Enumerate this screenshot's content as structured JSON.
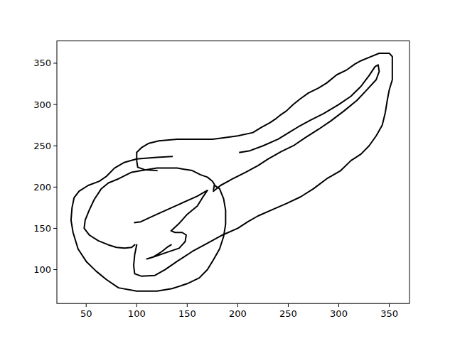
{
  "chart_data": {
    "type": "line",
    "xlim": [
      21,
      370
    ],
    "ylim": [
      59,
      377
    ],
    "xticks": [
      50,
      100,
      150,
      200,
      250,
      300,
      350
    ],
    "yticks": [
      100,
      150,
      200,
      250,
      300,
      350
    ],
    "grid": false,
    "series": [
      {
        "color": "#000000",
        "x": [
          135,
          120,
          100,
          88,
          78,
          70,
          63,
          52,
          43,
          38,
          36,
          35,
          37,
          42,
          50,
          60,
          70,
          82,
          100,
          120,
          135,
          150,
          162,
          170,
          176,
          182,
          186,
          188,
          188,
          186,
          182,
          177
        ],
        "values": [
          237,
          236,
          234,
          230,
          223,
          213,
          207,
          202,
          195,
          187,
          175,
          160,
          145,
          125,
          110,
          98,
          88,
          78,
          74,
          74,
          77,
          83,
          90,
          100,
          112,
          125,
          140,
          155,
          172,
          186,
          198,
          202
        ]
      },
      {
        "color": "#000000",
        "x": [
          98,
          95,
          88,
          80,
          72,
          62,
          53,
          48,
          49,
          53,
          58,
          65,
          72,
          82,
          95,
          105,
          120,
          140,
          155,
          163,
          170,
          175,
          177,
          176
        ],
        "values": [
          130,
          127,
          126,
          127,
          130,
          135,
          142,
          150,
          160,
          172,
          185,
          198,
          205,
          210,
          218,
          220,
          223,
          223,
          220,
          215,
          212,
          207,
          203,
          197
        ]
      },
      {
        "color": "#000000",
        "x": [
          120,
          108,
          101,
          100,
          100,
          105,
          112,
          122,
          140,
          160,
          175,
          182,
          200,
          215,
          223,
          232,
          238,
          242,
          248,
          255,
          262,
          270,
          280,
          288,
          298,
          308,
          316,
          322,
          332,
          340,
          350,
          353,
          353,
          353,
          350,
          348,
          346,
          343,
          337,
          330,
          322,
          312,
          302,
          288,
          275,
          262,
          248,
          235,
          220,
          210,
          200,
          185,
          170,
          155,
          140,
          128,
          118,
          105,
          98,
          97,
          98,
          100
        ],
        "values": [
          220,
          221,
          224,
          232,
          242,
          248,
          253,
          256,
          258,
          258,
          258,
          259,
          262,
          266,
          272,
          278,
          283,
          287,
          292,
          300,
          307,
          314,
          320,
          326,
          336,
          342,
          349,
          353,
          358,
          362,
          362,
          358,
          345,
          330,
          318,
          305,
          290,
          275,
          262,
          250,
          240,
          232,
          220,
          210,
          198,
          188,
          180,
          173,
          165,
          158,
          150,
          142,
          132,
          122,
          110,
          100,
          93,
          92,
          95,
          105,
          118,
          130
        ]
      },
      {
        "color": "#000000",
        "x": [
          202,
          212,
          225,
          240,
          252,
          260,
          272,
          285,
          300,
          312,
          322,
          330,
          336,
          339,
          340,
          337,
          328,
          318,
          305,
          292,
          280,
          267,
          255,
          243,
          230,
          220,
          208,
          195,
          183,
          176
        ],
        "values": [
          242,
          244,
          250,
          258,
          267,
          273,
          281,
          289,
          300,
          310,
          322,
          335,
          346,
          348,
          340,
          330,
          318,
          305,
          292,
          280,
          270,
          260,
          250,
          243,
          234,
          226,
          218,
          210,
          202,
          195
        ]
      },
      {
        "color": "#000000",
        "x": [
          98,
          104,
          120,
          140,
          160,
          170,
          165,
          160,
          150,
          142,
          134,
          138,
          145,
          149,
          148,
          142,
          130,
          118,
          110,
          116,
          125,
          130,
          134
        ],
        "values": [
          157,
          158,
          167,
          178,
          189,
          196,
          187,
          177,
          167,
          156,
          147,
          145,
          145,
          142,
          134,
          126,
          121,
          116,
          113,
          115,
          122,
          127,
          130
        ]
      }
    ]
  }
}
